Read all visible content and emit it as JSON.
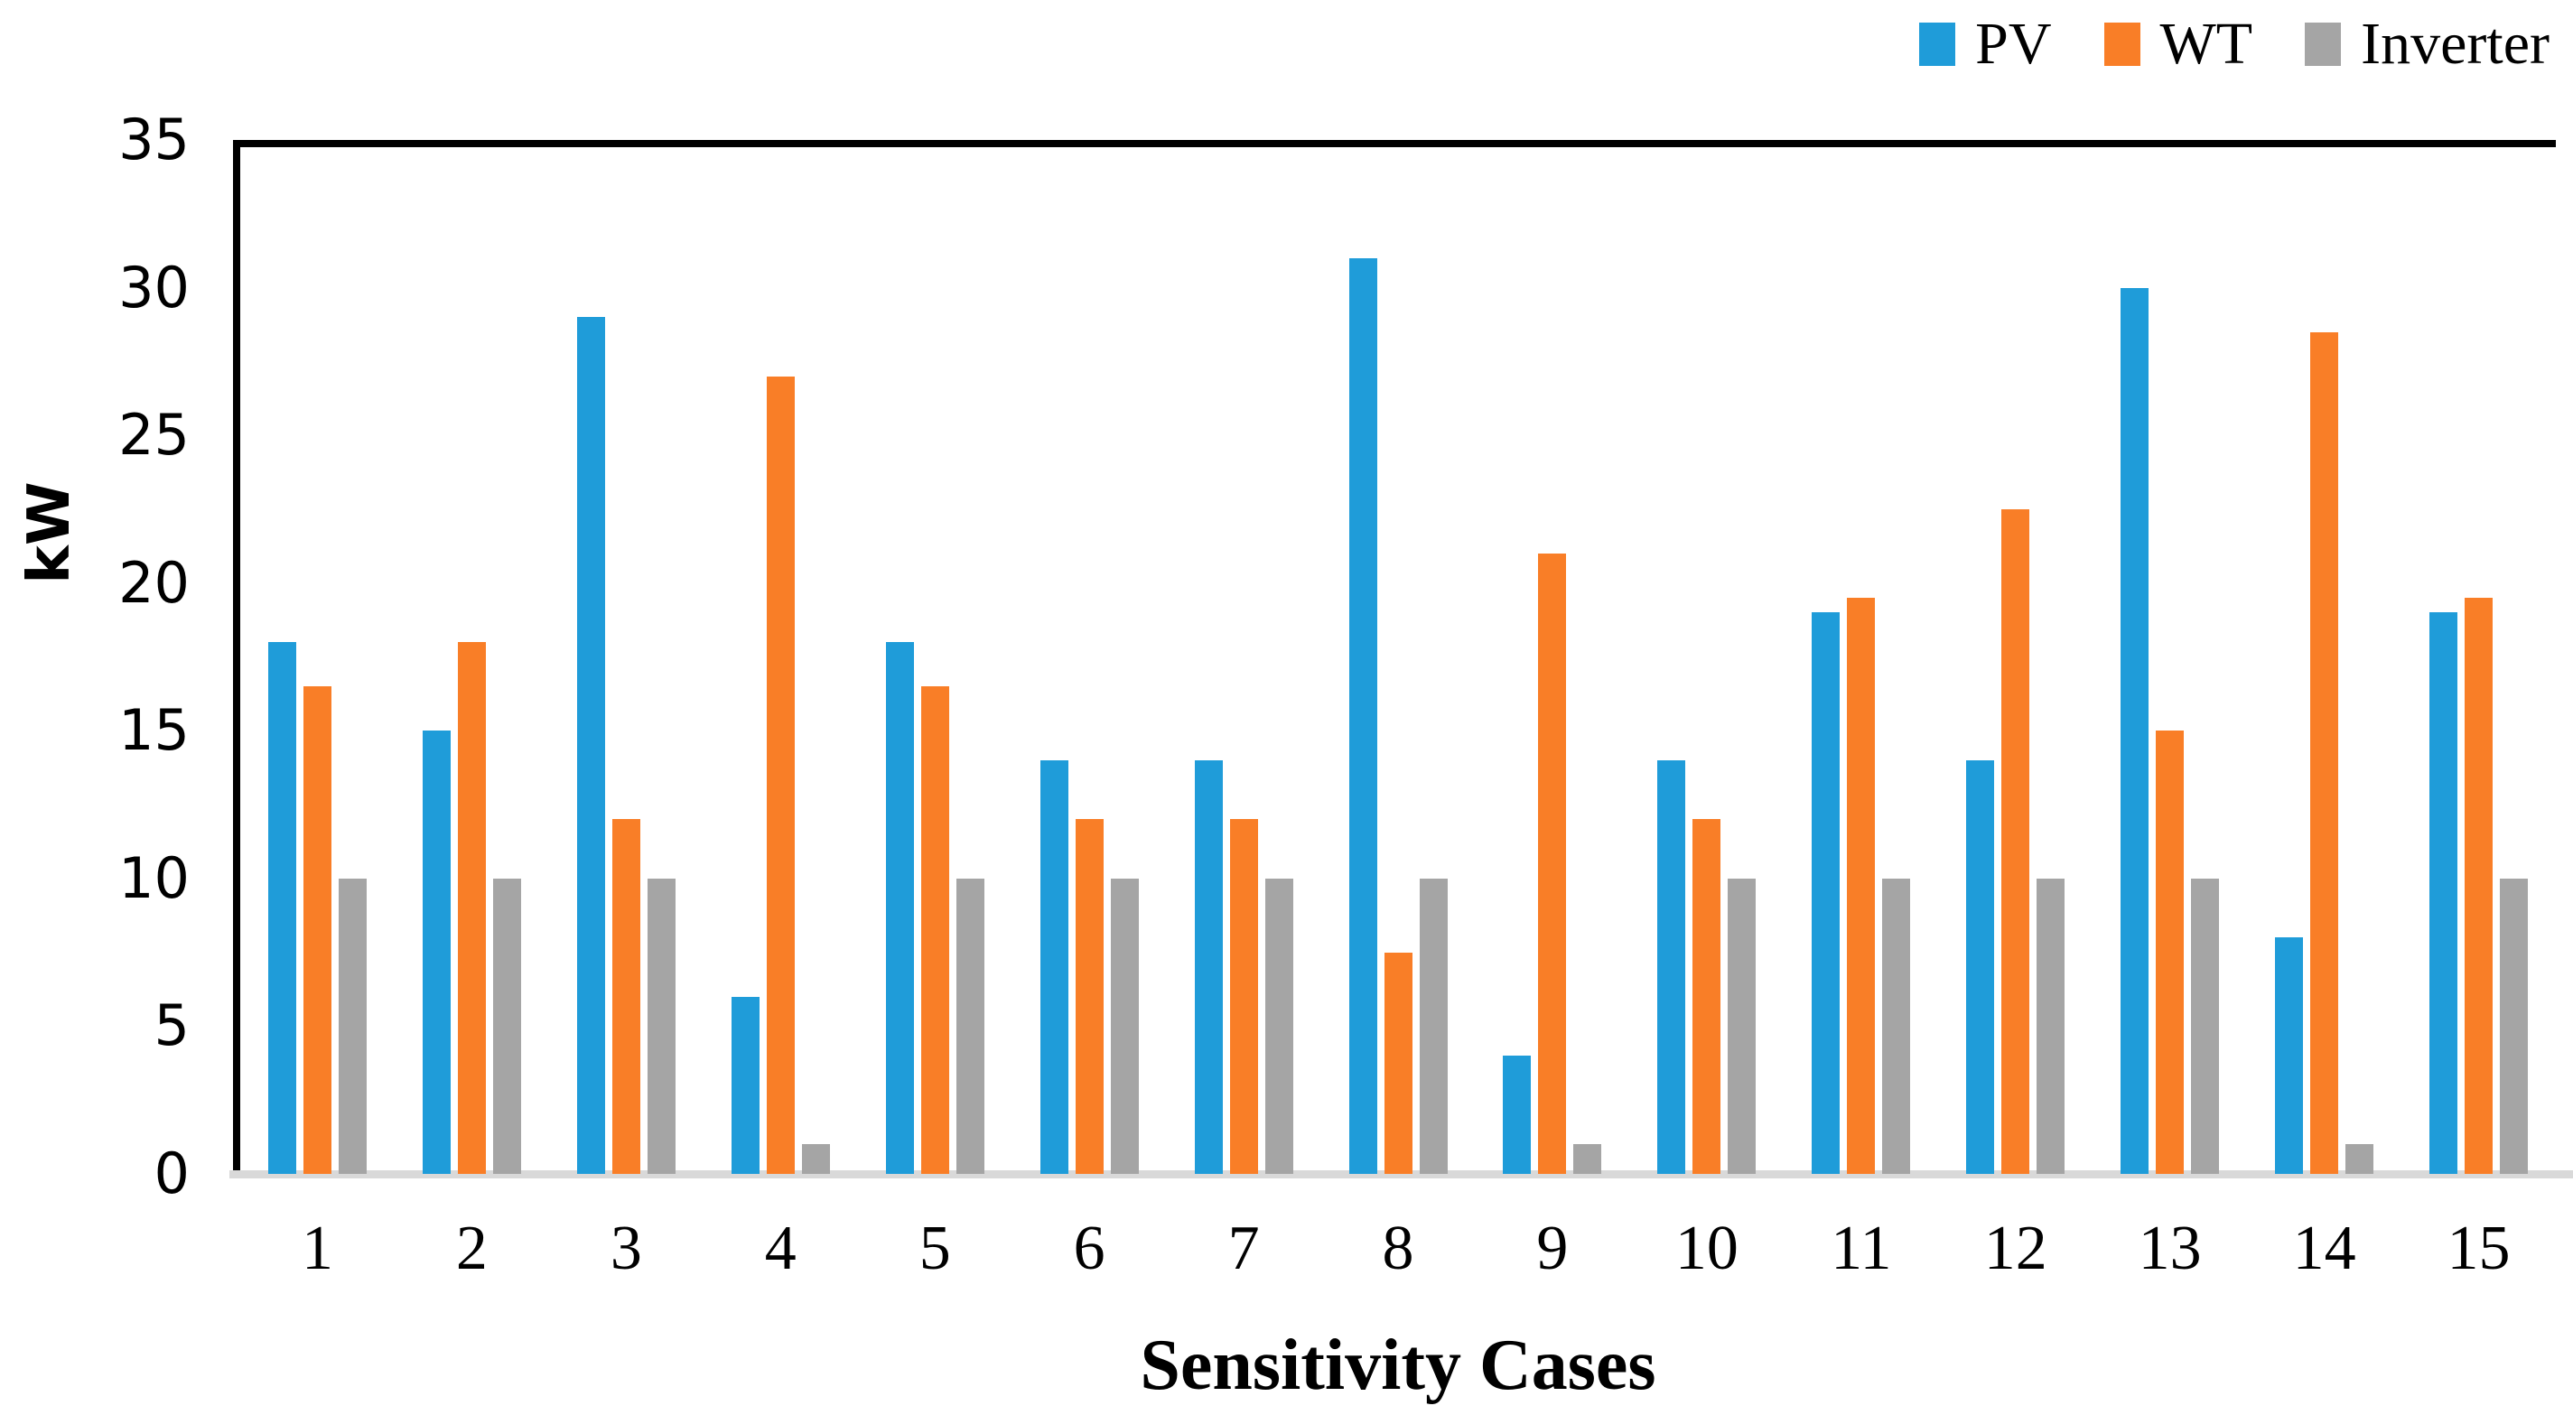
{
  "chart_data": {
    "type": "bar",
    "title": "",
    "xlabel": "Sensitivity Cases",
    "ylabel": "kW",
    "categories": [
      "1",
      "2",
      "3",
      "4",
      "5",
      "6",
      "7",
      "8",
      "9",
      "10",
      "11",
      "12",
      "13",
      "14",
      "15"
    ],
    "series": [
      {
        "name": "PV",
        "color": "#1F9CD9",
        "values": [
          18,
          15,
          29,
          6,
          18,
          14,
          14,
          31,
          4,
          14,
          19,
          14,
          30,
          8,
          19
        ]
      },
      {
        "name": "WT",
        "color": "#F97E27",
        "values": [
          16.5,
          18,
          12,
          27,
          16.5,
          12,
          12,
          7.5,
          21,
          12,
          19.5,
          22.5,
          15,
          28.5,
          19.5
        ]
      },
      {
        "name": "Inverter",
        "color": "#A5A5A5",
        "values": [
          10,
          10,
          10,
          1,
          10,
          10,
          10,
          10,
          1,
          10,
          10,
          10,
          10,
          1,
          10
        ]
      }
    ],
    "ylim": [
      0,
      35
    ],
    "ytick_step": 5,
    "grid": false,
    "legend_position": "top-right",
    "axis_color": "#000000",
    "baseline_color": "#D9D9D9"
  }
}
